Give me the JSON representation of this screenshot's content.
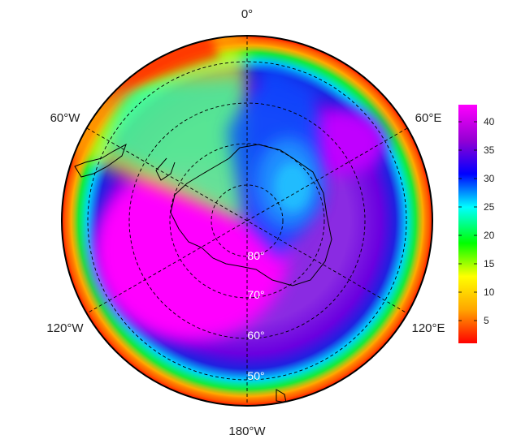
{
  "map": {
    "projection": "south polar stereographic",
    "colormap": [
      "#ff0000",
      "#ffa500",
      "#ffff00",
      "#00ff00",
      "#00ffff",
      "#0000ff",
      "#9400d3",
      "#ff00ff"
    ],
    "longitude_labels": {
      "top": "0°",
      "upper_left": "60°W",
      "upper_right": "60°E",
      "lower_left": "120°W",
      "lower_right": "120°E",
      "bottom": "180°W"
    },
    "latitude_labels": [
      "80°",
      "70°",
      "60°",
      "50°"
    ],
    "colorbar": {
      "min": 1,
      "max": 43,
      "ticks": [
        "5",
        "10",
        "15",
        "20",
        "25",
        "30",
        "35",
        "40"
      ]
    }
  }
}
